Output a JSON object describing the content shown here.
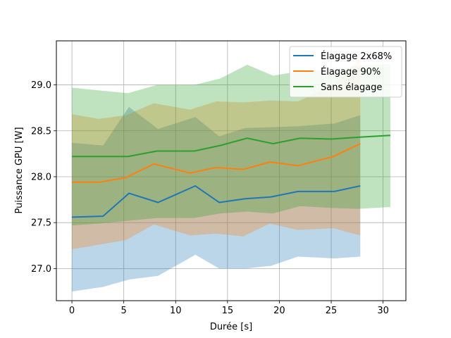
{
  "chart_data": {
    "type": "line",
    "xlabel": "Durée [s]",
    "ylabel": "Puissance GPU [W]",
    "xlim": [
      -1.5,
      32.2
    ],
    "ylim": [
      26.65,
      29.48
    ],
    "xticks": [
      0,
      5,
      10,
      15,
      20,
      25,
      30
    ],
    "yticks": [
      27.0,
      27.5,
      28.0,
      28.5,
      29.0
    ],
    "xtick_labels": [
      "0",
      "5",
      "10",
      "15",
      "20",
      "25",
      "30"
    ],
    "ytick_labels": [
      "27.0",
      "27.5",
      "28.0",
      "28.5",
      "29.0"
    ],
    "grid": true,
    "legend_position": "top-right",
    "series": [
      {
        "name": "Élagage 2x68%",
        "color": "#1f77b4",
        "x": [
          0,
          3,
          5.5,
          8.3,
          11.9,
          14.2,
          16.7,
          19.2,
          21.8,
          25.3,
          27.8
        ],
        "y": [
          27.56,
          27.57,
          27.82,
          27.72,
          27.9,
          27.72,
          27.76,
          27.78,
          27.84,
          27.84,
          27.9
        ],
        "lower": [
          26.75,
          26.8,
          26.88,
          26.92,
          27.15,
          27.0,
          27.0,
          27.03,
          27.13,
          27.11,
          27.13
        ],
        "upper": [
          28.37,
          28.34,
          28.76,
          28.52,
          28.65,
          28.44,
          28.53,
          28.54,
          28.55,
          28.58,
          28.67
        ]
      },
      {
        "name": "Élagage 90%",
        "color": "#ff7f0e",
        "x": [
          0,
          2.6,
          5.2,
          7.9,
          11.4,
          13.9,
          16.5,
          19.1,
          21.8,
          25.2,
          27.8
        ],
        "y": [
          27.94,
          27.94,
          27.99,
          28.14,
          28.04,
          28.1,
          28.08,
          28.16,
          28.12,
          28.22,
          28.36
        ],
        "lower": [
          27.21,
          27.26,
          27.31,
          27.48,
          27.36,
          27.38,
          27.35,
          27.49,
          27.42,
          27.44,
          27.36
        ],
        "upper": [
          28.68,
          28.63,
          28.67,
          28.8,
          28.73,
          28.82,
          28.81,
          28.83,
          28.82,
          29.0,
          29.29
        ]
      },
      {
        "name": "Sans élagage",
        "color": "#2ca02c",
        "x": [
          0,
          2.6,
          5.4,
          8.2,
          11.8,
          14.3,
          16.9,
          19.4,
          22.0,
          25.0,
          27.6,
          30.7
        ],
        "y": [
          28.22,
          28.22,
          28.22,
          28.28,
          28.28,
          28.34,
          28.42,
          28.36,
          28.42,
          28.41,
          28.43,
          28.45
        ],
        "lower": [
          27.47,
          27.49,
          27.52,
          27.55,
          27.55,
          27.6,
          27.62,
          27.6,
          27.68,
          27.66,
          27.65,
          27.67
        ],
        "upper": [
          28.97,
          28.94,
          28.91,
          29.0,
          29.0,
          29.07,
          29.22,
          29.1,
          29.15,
          29.16,
          29.21,
          29.23
        ]
      }
    ]
  }
}
